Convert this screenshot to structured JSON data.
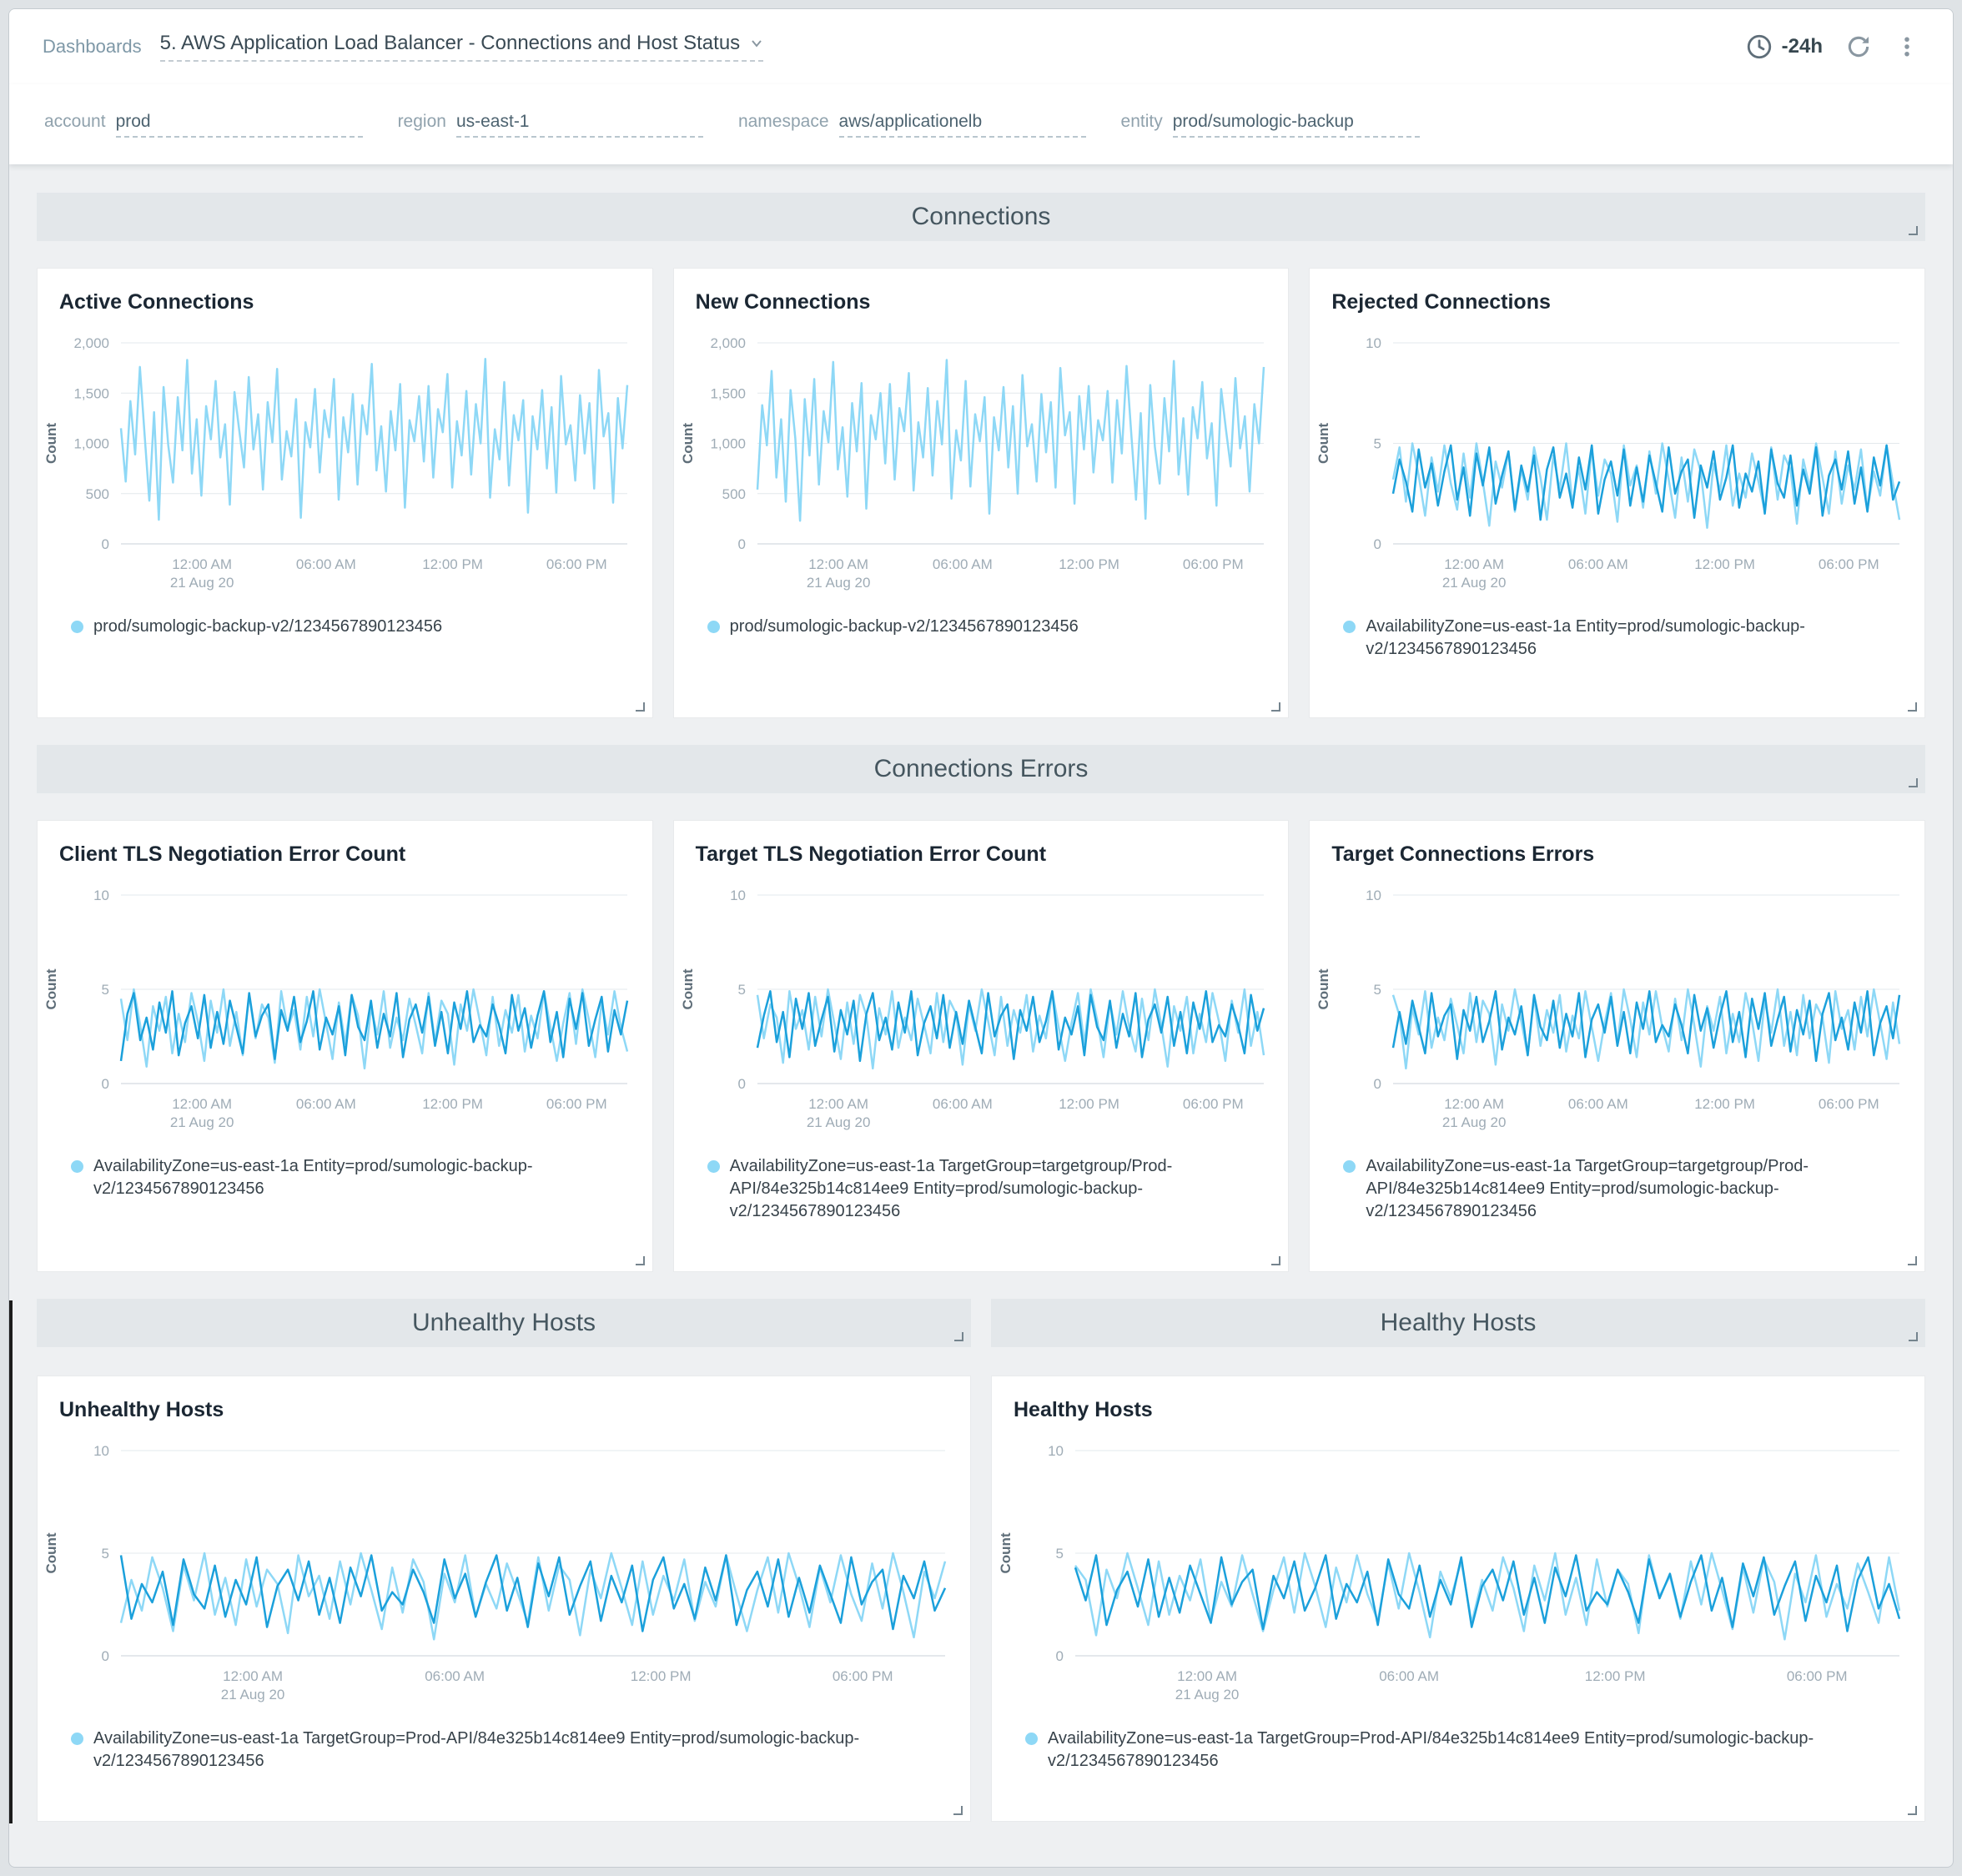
{
  "header": {
    "breadcrumb": "Dashboards",
    "title": "5. AWS Application Load Balancer - Connections and Host Status",
    "time_range": "-24h"
  },
  "filters": [
    {
      "label": "account",
      "value": "prod"
    },
    {
      "label": "region",
      "value": "us-east-1"
    },
    {
      "label": "namespace",
      "value": "aws/applicationelb"
    },
    {
      "label": "entity",
      "value": "prod/sumologic-backup"
    }
  ],
  "sections": {
    "connections": "Connections",
    "connections_errors": "Connections Errors",
    "unhealthy_hosts": "Unhealthy Hosts",
    "healthy_hosts": "Healthy Hosts"
  },
  "colors": {
    "light": "#8ed8f6",
    "dark": "#1ba0db",
    "grid": "#e3e8ec",
    "axis": "#c9d2d8",
    "tick_text": "#9facb6",
    "ylabel_text": "#5f6e79"
  },
  "x_axis": {
    "ticks": [
      "12:00 AM",
      "06:00 AM",
      "12:00 PM",
      "06:00 PM"
    ],
    "date": "21 Aug 20",
    "fracs": [
      0.16,
      0.405,
      0.655,
      0.9
    ]
  },
  "patterns": {
    "conn_a": [
      1150,
      620,
      1420,
      890,
      1760,
      1080,
      430,
      1310,
      240,
      1560,
      980,
      610,
      1460,
      930,
      1830,
      700,
      1240,
      480,
      1370,
      1040,
      1620,
      860,
      1190,
      390,
      1510,
      1130,
      760,
      1660,
      940,
      1290,
      540,
      1410,
      1010,
      1740,
      640,
      1120,
      870,
      1440,
      260,
      1210,
      960,
      1540,
      710,
      1330,
      1060,
      1640,
      440,
      1260,
      910,
      1490,
      590,
      1380,
      1090,
      1790,
      730,
      1170,
      520,
      1320,
      930,
      1590,
      360,
      1230,
      1020,
      1470,
      820,
      1570,
      660,
      1340,
      1110,
      1690,
      560,
      1220,
      880,
      1520,
      690,
      1390,
      1000,
      1840,
      460,
      1140,
      840,
      1610,
      580,
      1280,
      1030,
      1430,
      310,
      1270,
      940,
      1530,
      750,
      1360,
      510,
      1670,
      990,
      1180,
      630,
      1480,
      900,
      1400,
      550,
      1730,
      1070,
      1300,
      410,
      1450,
      950,
      1580
    ],
    "conn_b": [
      540,
      1380,
      980,
      1720,
      660,
      1240,
      420,
      1530,
      1050,
      230,
      1440,
      880,
      1640,
      590,
      1320,
      1010,
      1810,
      740,
      1160,
      470,
      1400,
      920,
      1600,
      350,
      1280,
      1040,
      1500,
      800,
      1590,
      640,
      1350,
      1120,
      1700,
      530,
      1210,
      860,
      1550,
      680,
      1420,
      990,
      1830,
      450,
      1130,
      830,
      1620,
      570,
      1290,
      1020,
      1460,
      300,
      1260,
      930,
      1560,
      760,
      1370,
      500,
      1680,
      970,
      1190,
      620,
      1490,
      910,
      1410,
      560,
      1750,
      1080,
      1310,
      400,
      1470,
      940,
      1570,
      710,
      1230,
      1030,
      1520,
      610,
      1430,
      900,
      1770,
      1090,
      440,
      1300,
      250,
      1580,
      960,
      600,
      1450,
      920,
      1820,
      690,
      1250,
      490,
      1360,
      1050,
      1610,
      850,
      1200,
      380,
      1540,
      1140,
      770,
      1650,
      950,
      1270,
      520,
      1390,
      1000,
      1760
    ],
    "err_light": [
      3.2,
      4.8,
      2.1,
      5,
      3.4,
      1.4,
      4.3,
      2.6,
      4.9,
      3.0,
      1.7,
      4.5,
      2.3,
      5,
      3.1,
      0.9,
      4.1,
      2.8,
      4.6,
      1.6,
      3.7,
      2.2,
      4.8,
      3.3,
      1.2,
      4.4,
      2.7,
      5,
      2.0,
      3.8,
      1.5,
      4.7,
      2.4,
      4.2,
      3.5,
      1.1,
      4.9,
      2.9,
      3.9,
      1.8,
      4.6,
      2.5,
      5,
      3.2,
      1.3,
      4.3,
      2.1,
      4.7,
      3.6,
      0.8,
      4.0,
      2.6,
      4.9,
      1.9,
      3.5,
      2.3,
      4.5,
      3.1,
      1.6,
      4.8,
      2.2,
      4.4,
      3.7,
      1.0,
      4.2,
      2.8,
      5,
      3.3,
      1.5,
      4.6,
      2.0,
      3.9,
      2.7,
      4.7,
      1.7,
      3.6,
      2.4,
      4.9,
      3.0,
      1.2
    ],
    "err_dark": [
      2.5,
      4.2,
      3.1,
      1.6,
      4.7,
      2.8,
      4.0,
      1.9,
      3.6,
      4.9,
      2.2,
      3.8,
      1.4,
      4.5,
      2.9,
      4.8,
      2.0,
      3.4,
      4.6,
      1.7,
      3.9,
      2.6,
      4.4,
      1.2,
      3.7,
      4.8,
      2.3,
      3.5,
      1.8,
      4.3,
      2.7,
      4.9,
      1.5,
      3.2,
      4.1,
      2.4,
      4.7,
      1.9,
      3.8,
      2.1,
      4.4,
      3.0,
      1.6,
      4.8,
      2.5,
      3.6,
      4.2,
      1.3,
      3.9,
      2.8,
      4.6,
      2.2,
      3.3,
      4.9,
      1.8,
      3.5,
      2.6,
      4.1,
      1.5,
      4.7,
      3.0,
      2.3,
      4.4,
      1.9,
      3.7,
      2.5,
      4.8,
      1.4,
      3.4,
      4.2,
      2.7,
      4.6,
      2.0,
      3.8,
      1.6,
      4.3,
      2.9,
      4.9,
      2.2,
      3.1
    ]
  },
  "chart_data": [
    {
      "type": "line",
      "title": "Active Connections",
      "ylabel": "Count",
      "ylim": [
        0,
        2000
      ],
      "y_tick_vals": [
        0,
        500,
        1000,
        1500,
        2000
      ],
      "y_tick_labels": [
        "0",
        "500",
        "1,000",
        "1,500",
        "2,000"
      ],
      "grid": true,
      "legend_position": "bottom",
      "series": [
        {
          "name": "prod/sumologic-backup-v2/1234567890123456",
          "pattern": "conn_a",
          "phase": 0,
          "color": "light"
        }
      ],
      "legend": "prod/sumologic-backup-v2/1234567890123456"
    },
    {
      "type": "line",
      "title": "New Connections",
      "ylabel": "Count",
      "ylim": [
        0,
        2000
      ],
      "y_tick_vals": [
        0,
        500,
        1000,
        1500,
        2000
      ],
      "y_tick_labels": [
        "0",
        "500",
        "1,000",
        "1,500",
        "2,000"
      ],
      "grid": true,
      "legend_position": "bottom",
      "series": [
        {
          "name": "prod/sumologic-backup-v2/1234567890123456",
          "pattern": "conn_b",
          "phase": 0,
          "color": "light"
        }
      ],
      "legend": "prod/sumologic-backup-v2/1234567890123456"
    },
    {
      "type": "line",
      "title": "Rejected Connections",
      "ylabel": "Count",
      "ylim": [
        0,
        10
      ],
      "y_tick_vals": [
        0,
        5,
        10
      ],
      "y_tick_labels": [
        "0",
        "5",
        "10"
      ],
      "grid": true,
      "legend_position": "bottom",
      "series": [
        {
          "name": "AvailabilityZone=us-east-1a Entity=prod/sumologic-backup-v2/1234567890123456",
          "pattern": "err_light",
          "phase": 0,
          "color": "light"
        },
        {
          "name": "AvailabilityZone=us-east-1a Entity=prod/sumologic-backup-v2/1234567890123456",
          "pattern": "err_dark",
          "phase": 0,
          "color": "dark"
        }
      ],
      "legend": "AvailabilityZone=us-east-1a Entity=prod/sumologic-backup-v2/1234567890123456"
    },
    {
      "type": "line",
      "title": "Client TLS Negotiation Error Count",
      "ylabel": "Count",
      "ylim": [
        0,
        10
      ],
      "y_tick_vals": [
        0,
        5,
        10
      ],
      "y_tick_labels": [
        "0",
        "5",
        "10"
      ],
      "grid": true,
      "legend_position": "bottom",
      "series": [
        {
          "pattern": "err_light",
          "phase": 11,
          "color": "light"
        },
        {
          "pattern": "err_dark",
          "phase": 23,
          "color": "dark"
        }
      ],
      "legend": "AvailabilityZone=us-east-1a Entity=prod/sumologic-backup-v2/1234567890123456"
    },
    {
      "type": "line",
      "title": "Target TLS Negotiation Error Count",
      "ylabel": "Count",
      "ylim": [
        0,
        10
      ],
      "y_tick_vals": [
        0,
        5,
        10
      ],
      "y_tick_labels": [
        "0",
        "5",
        "10"
      ],
      "grid": true,
      "legend_position": "bottom",
      "series": [
        {
          "pattern": "err_light",
          "phase": 31,
          "color": "light"
        },
        {
          "pattern": "err_dark",
          "phase": 7,
          "color": "dark"
        }
      ],
      "legend": "AvailabilityZone=us-east-1a TargetGroup=targetgroup/Prod-API/84e325b14c814ee9 Entity=prod/sumologic-backup-v2/1234567890123456"
    },
    {
      "type": "line",
      "title": "Target Connections Errors",
      "ylabel": "Count",
      "ylim": [
        0,
        10
      ],
      "y_tick_vals": [
        0,
        5,
        10
      ],
      "y_tick_labels": [
        "0",
        "5",
        "10"
      ],
      "grid": true,
      "legend_position": "bottom",
      "series": [
        {
          "pattern": "err_light",
          "phase": 47,
          "color": "light"
        },
        {
          "pattern": "err_dark",
          "phase": 37,
          "color": "dark"
        }
      ],
      "legend": "AvailabilityZone=us-east-1a TargetGroup=targetgroup/Prod-API/84e325b14c814ee9 Entity=prod/sumologic-backup-v2/1234567890123456"
    },
    {
      "type": "line",
      "title": "Unhealthy Hosts",
      "ylabel": "Count",
      "ylim": [
        0,
        10
      ],
      "y_tick_vals": [
        0,
        5,
        10
      ],
      "y_tick_labels": [
        "0",
        "5",
        "10"
      ],
      "grid": true,
      "legend_position": "bottom",
      "series": [
        {
          "pattern": "err_light",
          "phase": 19,
          "color": "light"
        },
        {
          "pattern": "err_dark",
          "phase": 53,
          "color": "dark"
        }
      ],
      "legend": "AvailabilityZone=us-east-1a TargetGroup=Prod-API/84e325b14c814ee9 Entity=prod/sumologic-backup-v2/1234567890123456"
    },
    {
      "type": "line",
      "title": "Healthy Hosts",
      "ylabel": "Count",
      "ylim": [
        0,
        10
      ],
      "y_tick_vals": [
        0,
        5,
        10
      ],
      "y_tick_labels": [
        "0",
        "5",
        "10"
      ],
      "grid": true,
      "legend_position": "bottom",
      "series": [
        {
          "pattern": "err_light",
          "phase": 61,
          "color": "light"
        },
        {
          "pattern": "err_dark",
          "phase": 29,
          "color": "dark"
        }
      ],
      "legend": "AvailabilityZone=us-east-1a TargetGroup=Prod-API/84e325b14c814ee9 Entity=prod/sumologic-backup-v2/1234567890123456"
    }
  ]
}
